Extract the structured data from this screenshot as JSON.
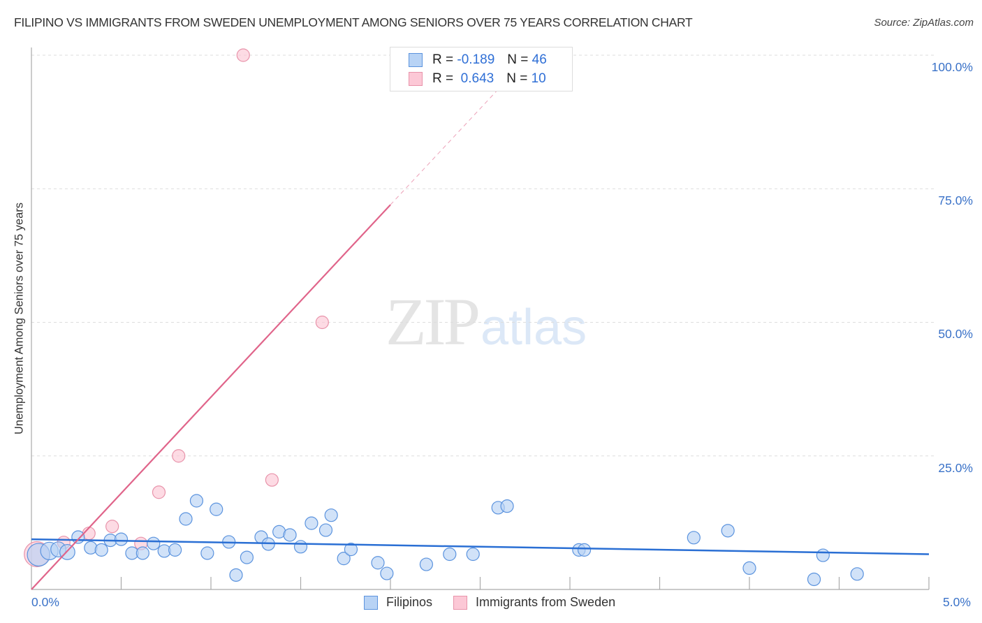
{
  "header": {
    "title": "FILIPINO VS IMMIGRANTS FROM SWEDEN UNEMPLOYMENT AMONG SENIORS OVER 75 YEARS CORRELATION CHART",
    "source": "Source: ZipAtlas.com"
  },
  "watermark": {
    "zip": "ZIP",
    "atlas": "atlas"
  },
  "axes": {
    "ylabel": "Unemployment Among Seniors over 75 years",
    "yticks": [
      "100.0%",
      "75.0%",
      "50.0%",
      "25.0%"
    ],
    "xticks": [
      "0.0%",
      "5.0%"
    ]
  },
  "legend_top": {
    "rows": [
      {
        "r_label": "R = ",
        "r_value": "-0.189",
        "n_label": "N = ",
        "n_value": "46"
      },
      {
        "r_label": "R = ",
        "r_value": " 0.643",
        "n_label": "N = ",
        "n_value": "10"
      }
    ]
  },
  "legend_bottom": {
    "items": [
      {
        "label": "Filipinos"
      },
      {
        "label": "Immigrants from Sweden"
      }
    ]
  },
  "colors": {
    "filipinos_fill": "#b8d3f5",
    "filipinos_stroke": "#5b93de",
    "filipinos_line": "#2a6fd4",
    "sweden_fill": "#fcc8d6",
    "sweden_stroke": "#e893aa",
    "sweden_line": "#e0648a",
    "axis_text": "#3a72c8",
    "grid": "#dddddd"
  },
  "chart_data": {
    "type": "scatter",
    "title": "FILIPINO VS IMMIGRANTS FROM SWEDEN UNEMPLOYMENT AMONG SENIORS OVER 75 YEARS CORRELATION CHART",
    "xlabel": "",
    "ylabel": "Unemployment Among Seniors over 75 years",
    "xlim": [
      0,
      5
    ],
    "ylim": [
      0,
      100
    ],
    "x_unit": "%",
    "y_unit": "%",
    "grid": true,
    "legend_position": "bottom",
    "series": [
      {
        "name": "Filipinos",
        "R": -0.189,
        "N": 46,
        "trendline": {
          "x": [
            0,
            5
          ],
          "y": [
            9.4,
            6.6
          ]
        },
        "points": [
          {
            "x": 0.04,
            "y": 6.5,
            "size": 18
          },
          {
            "x": 0.1,
            "y": 7.2,
            "size": 14
          },
          {
            "x": 0.15,
            "y": 7.5,
            "size": 12
          },
          {
            "x": 0.2,
            "y": 7.0,
            "size": 12
          },
          {
            "x": 0.26,
            "y": 9.8,
            "size": 10
          },
          {
            "x": 0.33,
            "y": 7.8,
            "size": 10
          },
          {
            "x": 0.39,
            "y": 7.4,
            "size": 10
          },
          {
            "x": 0.44,
            "y": 9.2,
            "size": 10
          },
          {
            "x": 0.5,
            "y": 9.4,
            "size": 10
          },
          {
            "x": 0.56,
            "y": 6.8,
            "size": 10
          },
          {
            "x": 0.62,
            "y": 6.8,
            "size": 10
          },
          {
            "x": 0.68,
            "y": 8.6,
            "size": 10
          },
          {
            "x": 0.74,
            "y": 7.2,
            "size": 10
          },
          {
            "x": 0.8,
            "y": 7.4,
            "size": 10
          },
          {
            "x": 0.86,
            "y": 13.2,
            "size": 10
          },
          {
            "x": 0.92,
            "y": 16.6,
            "size": 10
          },
          {
            "x": 0.98,
            "y": 6.8,
            "size": 10
          },
          {
            "x": 1.03,
            "y": 15.0,
            "size": 10
          },
          {
            "x": 1.1,
            "y": 8.9,
            "size": 10
          },
          {
            "x": 1.14,
            "y": 2.7,
            "size": 10
          },
          {
            "x": 1.2,
            "y": 6.0,
            "size": 10
          },
          {
            "x": 1.28,
            "y": 9.8,
            "size": 10
          },
          {
            "x": 1.32,
            "y": 8.5,
            "size": 10
          },
          {
            "x": 1.38,
            "y": 10.8,
            "size": 10
          },
          {
            "x": 1.44,
            "y": 10.2,
            "size": 10
          },
          {
            "x": 1.5,
            "y": 8.0,
            "size": 10
          },
          {
            "x": 1.56,
            "y": 12.4,
            "size": 10
          },
          {
            "x": 1.64,
            "y": 11.1,
            "size": 10
          },
          {
            "x": 1.67,
            "y": 13.9,
            "size": 10
          },
          {
            "x": 1.74,
            "y": 5.8,
            "size": 10
          },
          {
            "x": 1.78,
            "y": 7.5,
            "size": 10
          },
          {
            "x": 1.93,
            "y": 5.0,
            "size": 10
          },
          {
            "x": 1.98,
            "y": 3.0,
            "size": 10
          },
          {
            "x": 2.2,
            "y": 4.7,
            "size": 10
          },
          {
            "x": 2.33,
            "y": 6.6,
            "size": 10
          },
          {
            "x": 2.46,
            "y": 6.6,
            "size": 10
          },
          {
            "x": 2.6,
            "y": 15.3,
            "size": 10
          },
          {
            "x": 2.65,
            "y": 15.6,
            "size": 10
          },
          {
            "x": 3.05,
            "y": 7.4,
            "size": 10
          },
          {
            "x": 3.08,
            "y": 7.4,
            "size": 10
          },
          {
            "x": 3.69,
            "y": 9.7,
            "size": 10
          },
          {
            "x": 3.88,
            "y": 11.0,
            "size": 10
          },
          {
            "x": 4.0,
            "y": 4.0,
            "size": 10
          },
          {
            "x": 4.36,
            "y": 1.9,
            "size": 10
          },
          {
            "x": 4.41,
            "y": 6.4,
            "size": 10
          },
          {
            "x": 4.6,
            "y": 2.9,
            "size": 10
          }
        ]
      },
      {
        "name": "Immigrants from Sweden",
        "R": 0.643,
        "N": 10,
        "trendline": {
          "x": [
            0,
            2.0
          ],
          "y": [
            0,
            72
          ],
          "dashed_extension_to": {
            "x": 2.75,
            "y": 99
          }
        },
        "points": [
          {
            "x": 0.03,
            "y": 6.6,
            "size": 20
          },
          {
            "x": 0.18,
            "y": 8.8,
            "size": 10
          },
          {
            "x": 0.32,
            "y": 10.5,
            "size": 10
          },
          {
            "x": 0.45,
            "y": 11.8,
            "size": 10
          },
          {
            "x": 0.61,
            "y": 8.6,
            "size": 10
          },
          {
            "x": 0.71,
            "y": 18.2,
            "size": 10
          },
          {
            "x": 0.82,
            "y": 25.0,
            "size": 10
          },
          {
            "x": 1.18,
            "y": 100.0,
            "size": 10
          },
          {
            "x": 1.34,
            "y": 20.5,
            "size": 10
          },
          {
            "x": 1.62,
            "y": 50.0,
            "size": 10
          }
        ]
      }
    ]
  }
}
